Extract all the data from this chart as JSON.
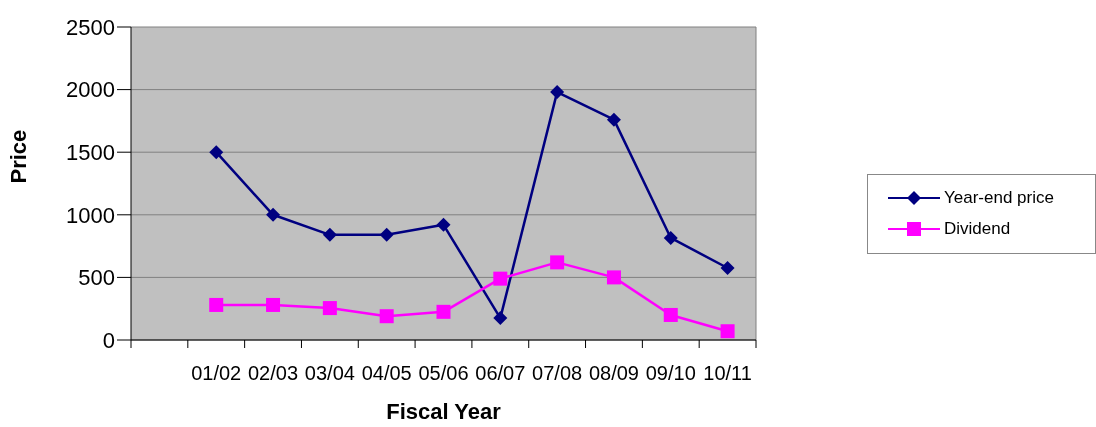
{
  "chart_data": {
    "type": "line",
    "xlabel": "Fiscal Year",
    "ylabel": "Price",
    "categories": [
      null,
      "01/02",
      "02/03",
      "03/04",
      "04/05",
      "05/06",
      "06/07",
      "07/08",
      "08/09",
      "09/10",
      "10/11"
    ],
    "series": [
      {
        "name": "Year-end price",
        "color": "#000080",
        "marker": "diamond",
        "values": [
          null,
          1500,
          1000,
          840,
          840,
          920,
          175,
          1980,
          1760,
          815,
          575
        ]
      },
      {
        "name": "Dividend",
        "color": "#ff00ff",
        "marker": "square",
        "values": [
          null,
          280,
          280,
          255,
          190,
          225,
          490,
          620,
          500,
          200,
          70
        ]
      }
    ],
    "ylim": [
      0,
      2500
    ],
    "yticks": [
      0,
      500,
      1000,
      1500,
      2000,
      2500
    ],
    "grid": "y",
    "legend": "right",
    "line_style": "solid"
  }
}
